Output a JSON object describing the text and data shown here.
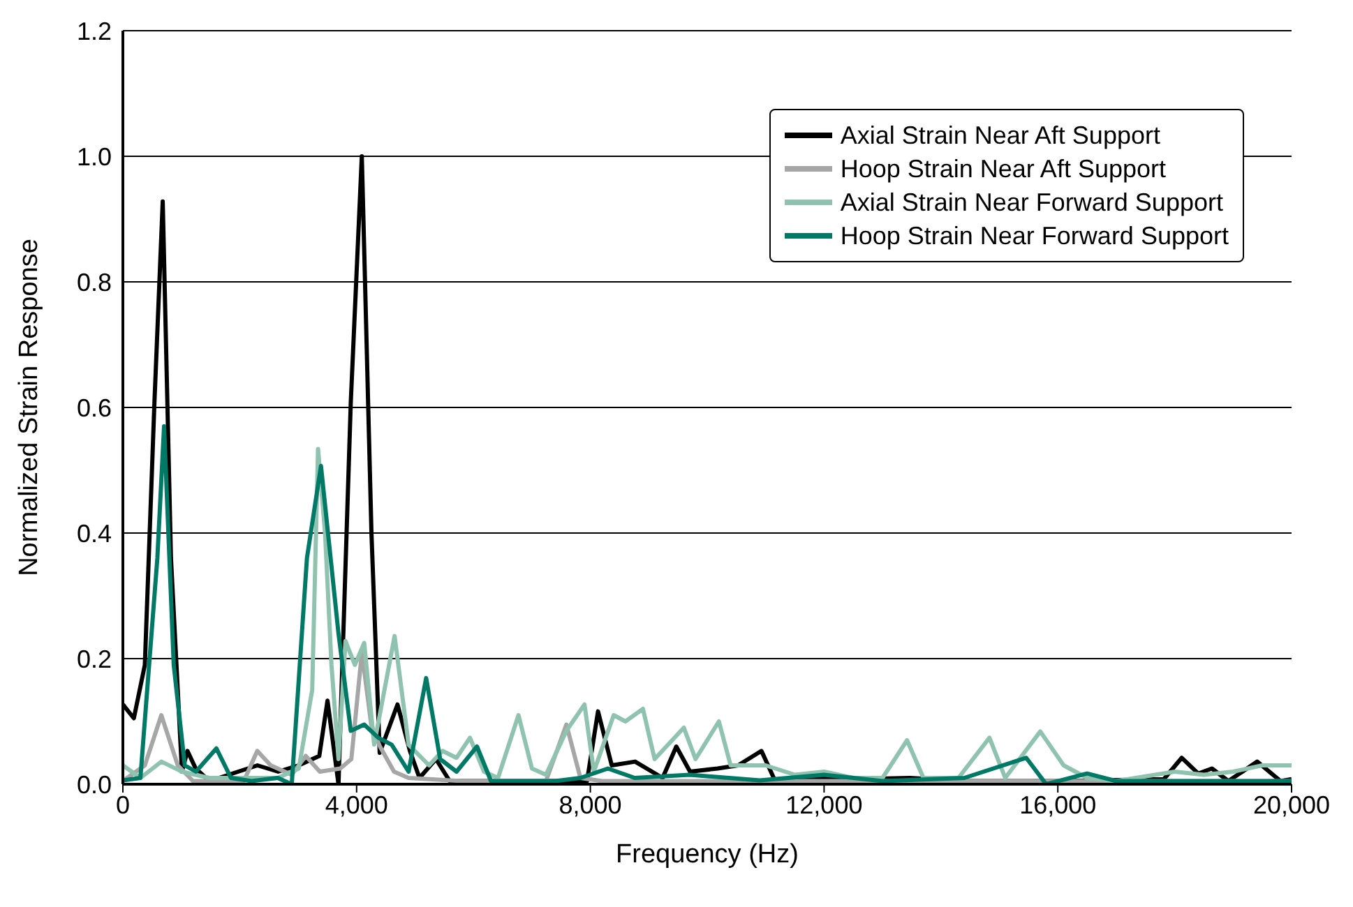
{
  "chart_data": {
    "type": "line",
    "xlabel": "Frequency (Hz)",
    "ylabel": "Normalized Strain Response",
    "xlim": [
      0,
      20000
    ],
    "xticks": [
      {
        "value": 0,
        "label": "0"
      },
      {
        "value": 4000,
        "label": "4,000"
      },
      {
        "value": 8000,
        "label": "8,000"
      },
      {
        "value": 12000,
        "label": "12,000"
      },
      {
        "value": 16000,
        "label": "16,000"
      },
      {
        "value": 20000,
        "label": "20,000"
      }
    ],
    "ylim": [
      0,
      1.2
    ],
    "yticks": [
      {
        "value": 0,
        "label": "0.0"
      },
      {
        "value": 0.2,
        "label": "0.2"
      },
      {
        "value": 0.4,
        "label": "0.4"
      },
      {
        "value": 0.6,
        "label": "0.6"
      },
      {
        "value": 0.8,
        "label": "0.8"
      },
      {
        "value": 1,
        "label": "1.0"
      },
      {
        "value": 1.2,
        "label": "1.2"
      }
    ],
    "grid": "y",
    "legend": "top right",
    "marker": "none",
    "line_style": "solid",
    "series": [
      {
        "name": "Axial Strain Near Aft Support",
        "color": "#000000",
        "x": [
          0,
          188,
          376,
          541,
          682,
          823,
          1011,
          1105,
          1246,
          1481,
          2303,
          2656,
          3008,
          3361,
          3502,
          3690,
          3901,
          4089,
          4254,
          4395,
          4700,
          4912,
          5076,
          5358,
          5593,
          6416,
          7943,
          8131,
          8366,
          8766,
          9236,
          9471,
          9706,
          10176,
          10529,
          10928,
          11163,
          11821,
          12526,
          13466,
          14407,
          16052,
          17814,
          18120,
          18402,
          18637,
          18919,
          19412,
          19812,
          20000
        ],
        "values": [
          0.127,
          0.105,
          0.19,
          0.61,
          0.928,
          0.36,
          0.02,
          0.053,
          0.025,
          0.005,
          0.03,
          0.02,
          0.03,
          0.045,
          0.133,
          0,
          0.61,
          1.0,
          0.4,
          0.05,
          0.127,
          0.053,
          0.01,
          0.04,
          0.005,
          0.005,
          0.005,
          0.116,
          0.03,
          0.036,
          0.01,
          0.06,
          0.02,
          0.025,
          0.03,
          0.053,
          0.005,
          0.01,
          0.008,
          0.01,
          0.005,
          0.005,
          0.008,
          0.042,
          0.017,
          0.025,
          0.005,
          0.036,
          0.005,
          0.008
        ]
      },
      {
        "name": "Hoop Strain Near Aft Support",
        "color": "#a6a6a6",
        "x": [
          0,
          376,
          658,
          940,
          1200,
          2070,
          2300,
          2530,
          2890,
          3130,
          3370,
          3720,
          3910,
          4090,
          4250,
          4400,
          4640,
          4890,
          5800,
          7240,
          7590,
          7830,
          8200,
          12000,
          20000
        ],
        "values": [
          0.005,
          0.03,
          0.11,
          0.03,
          0.005,
          0.005,
          0.053,
          0.03,
          0.015,
          0.045,
          0.02,
          0.025,
          0.04,
          0.21,
          0.095,
          0.06,
          0.02,
          0.01,
          0.005,
          0.005,
          0.095,
          0.01,
          0.005,
          0.005,
          0.005
        ]
      },
      {
        "name": "Axial Strain Near Forward Support",
        "color": "#8fc3b0",
        "x": [
          0,
          300,
          660,
          1010,
          1480,
          2650,
          3010,
          3240,
          3340,
          3460,
          3570,
          3690,
          3810,
          3970,
          4130,
          4300,
          4650,
          4890,
          5240,
          5470,
          5710,
          5940,
          6180,
          6420,
          6770,
          7000,
          7240,
          7590,
          7900,
          8060,
          8400,
          8600,
          8900,
          9100,
          9600,
          9800,
          10200,
          10400,
          11000,
          11500,
          12000,
          12500,
          13000,
          13420,
          13700,
          14300,
          14830,
          15100,
          15700,
          16100,
          16500,
          17000,
          18000,
          18500,
          19000,
          19500,
          20000
        ],
        "values": [
          0.03,
          0.01,
          0.036,
          0.02,
          0.01,
          0.01,
          0.025,
          0.15,
          0.534,
          0.4,
          0.19,
          0.04,
          0.228,
          0.19,
          0.225,
          0.063,
          0.236,
          0.063,
          0.03,
          0.053,
          0.042,
          0.074,
          0.02,
          0.01,
          0.11,
          0.025,
          0.015,
          0.085,
          0.127,
          0.02,
          0.11,
          0.1,
          0.12,
          0.04,
          0.09,
          0.04,
          0.1,
          0.03,
          0.03,
          0.015,
          0.02,
          0.01,
          0.01,
          0.07,
          0.01,
          0.01,
          0.074,
          0.01,
          0.084,
          0.03,
          0.01,
          0.005,
          0.02,
          0.015,
          0.02,
          0.03,
          0.03
        ]
      },
      {
        "name": "Hoop Strain Near Forward Support",
        "color": "#007a66",
        "x": [
          0,
          300,
          590,
          705,
          870,
          1060,
          1250,
          1600,
          1850,
          2200,
          2650,
          2890,
          3150,
          3390,
          3690,
          3900,
          4130,
          4370,
          4600,
          4890,
          5190,
          5430,
          5710,
          6060,
          6300,
          7400,
          7830,
          8300,
          8760,
          9700,
          10900,
          12000,
          13000,
          14400,
          15460,
          15800,
          16500,
          17000,
          20000
        ],
        "values": [
          0.006,
          0.01,
          0.36,
          0.57,
          0.19,
          0.03,
          0.02,
          0.057,
          0.01,
          0.005,
          0.01,
          0,
          0.36,
          0.507,
          0.24,
          0.085,
          0.095,
          0.074,
          0.063,
          0.02,
          0.169,
          0.04,
          0.02,
          0.06,
          0.005,
          0.005,
          0.01,
          0.025,
          0.01,
          0.015,
          0.006,
          0.015,
          0.005,
          0.01,
          0.042,
          0,
          0.017,
          0.005,
          0.005
        ]
      }
    ]
  }
}
